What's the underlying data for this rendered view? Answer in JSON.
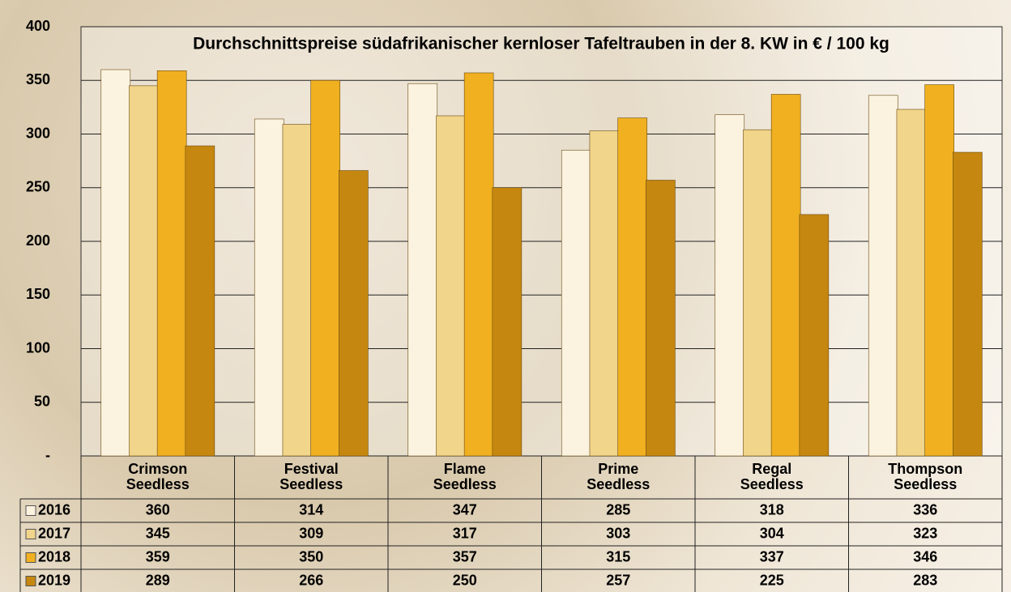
{
  "chart_data": {
    "type": "bar",
    "title": "Durchschnittspreise südafrikanischer kernloser Tafeltrauben in der 8. KW in € / 100 kg",
    "categories": [
      "Crimson Seedless",
      "Festival Seedless",
      "Flame Seedless",
      "Prime Seedless",
      "Regal Seedless",
      "Thompson Seedless"
    ],
    "series": [
      {
        "name": "2016",
        "color": "#fbf3e0",
        "values": [
          360,
          314,
          347,
          285,
          318,
          336
        ]
      },
      {
        "name": "2017",
        "color": "#f0d58a",
        "values": [
          345,
          309,
          317,
          303,
          304,
          323
        ]
      },
      {
        "name": "2018",
        "color": "#f0b020",
        "values": [
          359,
          350,
          357,
          315,
          337,
          346
        ]
      },
      {
        "name": "2019",
        "color": "#c5870f",
        "values": [
          289,
          266,
          250,
          257,
          225,
          283
        ]
      }
    ],
    "ylim": [
      0,
      400
    ],
    "yticks": [
      {
        "value": 0,
        "label": "-"
      },
      50,
      100,
      150,
      200,
      250,
      300,
      350,
      400
    ],
    "grid": true
  }
}
